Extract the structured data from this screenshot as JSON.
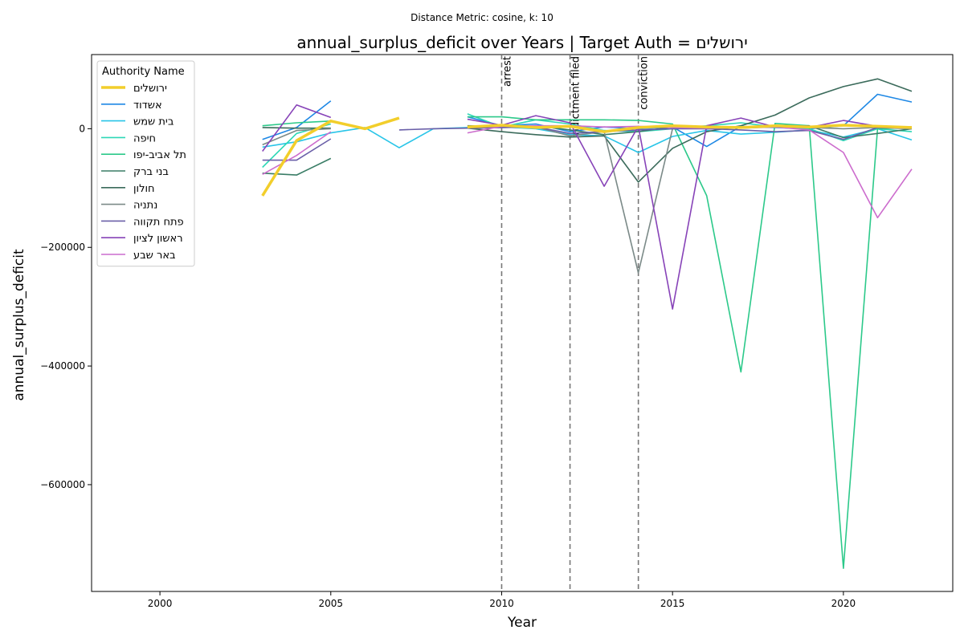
{
  "suptitle": "Distance Metric: cosine, k: 10",
  "chart_data": {
    "type": "line",
    "title": "annual_surplus_deficit over Years | Target Auth = ירושלים",
    "xlabel": "Year",
    "ylabel": "annual_surplus_deficit",
    "xlim": [
      1998,
      2023.2
    ],
    "ylim": [
      -780000,
      125000
    ],
    "x_ticks": [
      2000,
      2005,
      2010,
      2015,
      2020
    ],
    "x_tick_labels": [
      "2000",
      "2005",
      "2010",
      "2015",
      "2020"
    ],
    "y_ticks": [
      0,
      -200000,
      -400000,
      -600000
    ],
    "y_tick_labels": [
      "0",
      "−200000",
      "−400000",
      "−600000"
    ],
    "grid": false,
    "legend": {
      "title": "Authority Name",
      "placement": "upper-left"
    },
    "events": [
      {
        "x": 2010,
        "label": "arrest"
      },
      {
        "x": 2012,
        "label": "indictment filed"
      },
      {
        "x": 2014,
        "label": "conviction"
      }
    ],
    "series": [
      {
        "name": "ירושלים",
        "color": "#f2ce2b",
        "width": 3.5,
        "target": true,
        "x": [
          2003,
          2004,
          2005,
          2006,
          2007,
          2009,
          2010,
          2011,
          2012,
          2013,
          2014,
          2015,
          2016,
          2017,
          2018,
          2019,
          2020,
          2021,
          2022
        ],
        "y": [
          -113000,
          -20000,
          13000,
          0,
          18000,
          3000,
          6000,
          2000,
          4000,
          -5000,
          2000,
          5000,
          3000,
          2000,
          5000,
          3000,
          6000,
          4000,
          2000
        ]
      },
      {
        "name": "אשדוד",
        "color": "#1e88e5",
        "width": 1.6,
        "x": [
          2003,
          2004,
          2005,
          2009,
          2010,
          2011,
          2012,
          2013,
          2014,
          2015,
          2016,
          2017,
          2018,
          2019,
          2020,
          2021,
          2022
        ],
        "y": [
          -18000,
          2000,
          47000,
          20000,
          5000,
          8000,
          -5000,
          3000,
          0,
          3000,
          -30000,
          4000,
          2000,
          0,
          5000,
          58000,
          45000
        ]
      },
      {
        "name": "בית שמש",
        "color": "#29c5e8",
        "width": 1.6,
        "x": [
          2003,
          2004,
          2005,
          2006,
          2007,
          2008,
          2009,
          2010,
          2011,
          2012,
          2013,
          2014,
          2015,
          2016,
          2017,
          2018,
          2019,
          2020,
          2021,
          2022
        ],
        "y": [
          -31000,
          -22000,
          -7000,
          2000,
          -32000,
          0,
          2000,
          3000,
          0,
          -10000,
          -12000,
          -40000,
          -13000,
          -3000,
          -9000,
          -6000,
          -2000,
          -14000,
          0,
          -19000
        ]
      },
      {
        "name": "חיפה",
        "color": "#2ed8b6",
        "width": 1.6,
        "x": [
          2003,
          2004,
          2005,
          2009,
          2010,
          2011,
          2012,
          2013,
          2014,
          2015,
          2016,
          2017,
          2018,
          2019,
          2020,
          2021,
          2022
        ],
        "y": [
          -65000,
          -8000,
          8000,
          25000,
          3000,
          15000,
          8000,
          -3000,
          -5000,
          0,
          5000,
          10000,
          3000,
          0,
          -20000,
          0,
          -5000
        ]
      },
      {
        "name": "תל אביב-יפו",
        "color": "#2cc98a",
        "width": 1.6,
        "x": [
          2003,
          2004,
          2005,
          2009,
          2010,
          2011,
          2012,
          2013,
          2014,
          2015,
          2016,
          2017,
          2018,
          2019,
          2020,
          2021,
          2022
        ],
        "y": [
          5000,
          10000,
          13000,
          20000,
          20000,
          15000,
          15000,
          15000,
          14000,
          8000,
          -113000,
          -410000,
          9000,
          5000,
          -741000,
          0,
          2000
        ]
      },
      {
        "name": "בני ברק",
        "color": "#3a7d66",
        "width": 1.6,
        "x": [
          2003,
          2004,
          2005,
          2009,
          2010,
          2011,
          2012,
          2013,
          2014,
          2015,
          2016,
          2017,
          2018,
          2019,
          2020,
          2021,
          2022
        ],
        "y": [
          -75000,
          -78000,
          -50000,
          5000,
          4000,
          5000,
          -2000,
          -10000,
          -5000,
          3000,
          0,
          2000,
          3000,
          5000,
          -15000,
          -8000,
          0
        ]
      },
      {
        "name": "חולון",
        "color": "#3b6b5b",
        "width": 1.6,
        "x": [
          2003,
          2004,
          2005,
          2009,
          2010,
          2011,
          2012,
          2013,
          2014,
          2015,
          2016,
          2017,
          2018,
          2019,
          2020,
          2021,
          2022
        ],
        "y": [
          2000,
          1000,
          1000,
          1000,
          -5000,
          -10000,
          -14000,
          -12000,
          -90000,
          -33000,
          -5000,
          5000,
          23000,
          52000,
          71000,
          84000,
          63000
        ]
      },
      {
        "name": "נתניה",
        "color": "#7b8a88",
        "width": 1.6,
        "x": [
          2003,
          2004,
          2005,
          2009,
          2010,
          2011,
          2012,
          2013,
          2014,
          2015,
          2016,
          2017,
          2018,
          2019,
          2020,
          2021,
          2022
        ],
        "y": [
          -27000,
          -3000,
          0,
          3000,
          2000,
          3000,
          -12000,
          -5000,
          -243000,
          0,
          3000,
          1000,
          3000,
          2000,
          0,
          2000,
          0
        ]
      },
      {
        "name": "פתח תקווה",
        "color": "#6a5fa8",
        "width": 1.6,
        "x": [
          2003,
          2004,
          2005,
          2007,
          2008,
          2009,
          2010,
          2011,
          2012,
          2013,
          2014,
          2015,
          2016,
          2017,
          2018,
          2019,
          2020,
          2021,
          2022
        ],
        "y": [
          -53000,
          -53000,
          -17000,
          -2000,
          0,
          1000,
          2000,
          3000,
          -8000,
          -5000,
          -2000,
          0,
          0,
          -2000,
          -5000,
          -3000,
          -18000,
          2000,
          1000
        ]
      },
      {
        "name": "ראשון לציון",
        "color": "#8743b8",
        "width": 1.6,
        "x": [
          2003,
          2004,
          2005,
          2009,
          2010,
          2011,
          2012,
          2013,
          2014,
          2015,
          2016,
          2017,
          2018,
          2019,
          2020,
          2021,
          2022
        ],
        "y": [
          -38000,
          40000,
          19000,
          16000,
          6000,
          22000,
          10000,
          -97000,
          4000,
          -304000,
          5000,
          18000,
          3000,
          2000,
          14000,
          4000,
          3000
        ]
      },
      {
        "name": "באר שבע",
        "color": "#cc6ccd",
        "width": 1.6,
        "x": [
          2003,
          2004,
          2005,
          2009,
          2010,
          2011,
          2012,
          2013,
          2014,
          2015,
          2016,
          2017,
          2018,
          2019,
          2020,
          2021,
          2022
        ],
        "y": [
          -77000,
          -45000,
          -5000,
          -7000,
          4000,
          5000,
          5000,
          3000,
          4000,
          2000,
          1000,
          2000,
          3000,
          -2000,
          -40000,
          -150000,
          -68000
        ]
      }
    ]
  }
}
